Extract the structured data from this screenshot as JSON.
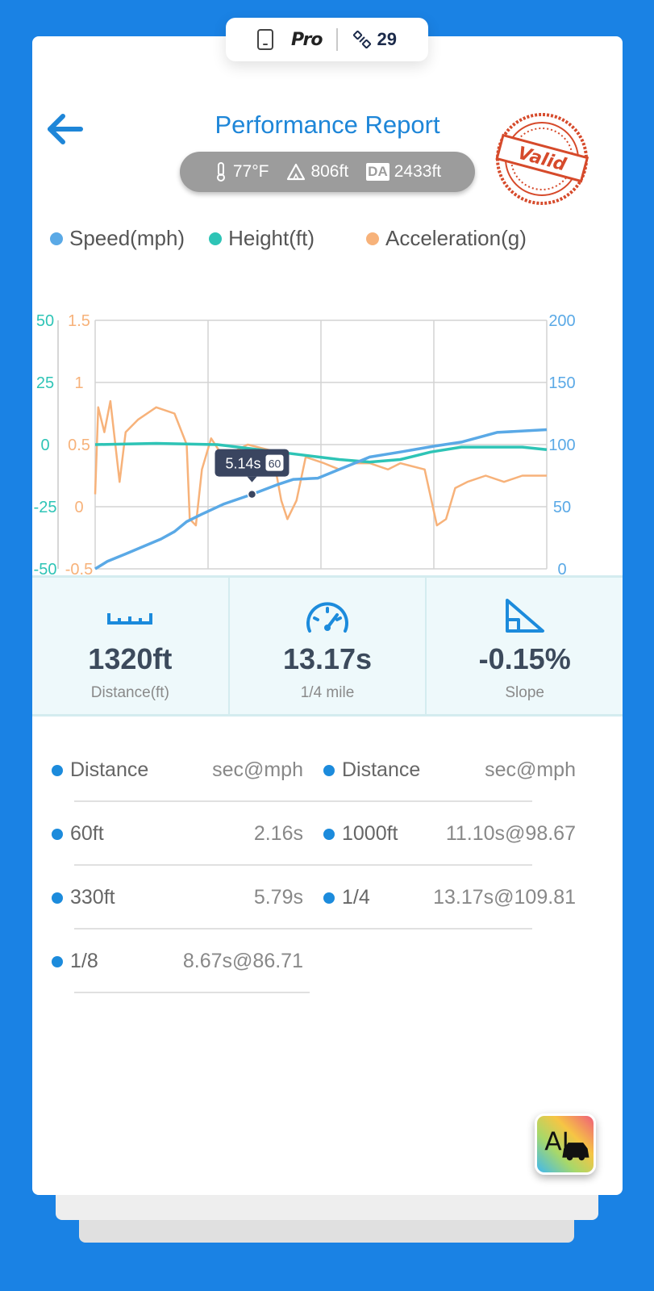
{
  "status_pill": {
    "brand": "Pro",
    "satellites": "29"
  },
  "header": {
    "title": "Performance Report",
    "stamp_text": "Valid"
  },
  "conditions": {
    "temperature": "77°F",
    "altitude": "806ft",
    "da_badge": "DA",
    "density_altitude": "2433ft"
  },
  "legend": [
    {
      "label": "Speed(mph)",
      "color": "#5aa9e6"
    },
    {
      "label": "Height(ft)",
      "color": "#2ec4b6"
    },
    {
      "label": "Acceleration(g)",
      "color": "#f7b27a"
    }
  ],
  "chart_data": {
    "type": "line",
    "x_range": [
      0,
      14.8
    ],
    "grid": true,
    "axes": {
      "height_left": {
        "ticks": [
          "50",
          "25",
          "0",
          "-25",
          "-50"
        ],
        "range": [
          -50,
          50
        ],
        "color": "#2ec4b6"
      },
      "accel_left": {
        "ticks": [
          "1.5",
          "1",
          "0.5",
          "0",
          "-0.5"
        ],
        "range": [
          -0.5,
          1.5
        ],
        "color": "#f7b27a"
      },
      "speed_right": {
        "ticks": [
          "200",
          "150",
          "100",
          "50",
          "0"
        ],
        "range": [
          0,
          200
        ],
        "color": "#5aa9e6"
      }
    },
    "series": [
      {
        "name": "Speed(mph)",
        "axis": "speed_right",
        "color": "#5aa9e6",
        "points": [
          [
            0,
            0
          ],
          [
            0.4,
            6
          ],
          [
            1,
            12
          ],
          [
            2.16,
            24
          ],
          [
            2.6,
            30
          ],
          [
            3,
            38
          ],
          [
            3.5,
            44
          ],
          [
            4.2,
            52
          ],
          [
            5.14,
            60
          ],
          [
            6,
            68
          ],
          [
            6.5,
            72
          ],
          [
            7.3,
            73
          ],
          [
            8,
            80
          ],
          [
            8.67,
            86.71
          ],
          [
            9,
            90
          ],
          [
            10,
            94
          ],
          [
            11.1,
            98.67
          ],
          [
            12,
            102
          ],
          [
            13.17,
            109.81
          ],
          [
            14.8,
            112
          ]
        ]
      },
      {
        "name": "Height(ft)",
        "axis": "height_left",
        "color": "#2ec4b6",
        "points": [
          [
            0,
            0
          ],
          [
            2,
            0.5
          ],
          [
            4,
            0
          ],
          [
            6,
            -3
          ],
          [
            8,
            -6
          ],
          [
            9,
            -7
          ],
          [
            10,
            -6
          ],
          [
            11,
            -3
          ],
          [
            12,
            -1
          ],
          [
            14,
            -1
          ],
          [
            14.8,
            -2
          ]
        ]
      },
      {
        "name": "Acceleration(g)",
        "axis": "accel_left",
        "color": "#f7b27a",
        "points": [
          [
            0,
            0.1
          ],
          [
            0.1,
            0.8
          ],
          [
            0.3,
            0.6
          ],
          [
            0.5,
            0.85
          ],
          [
            0.8,
            0.2
          ],
          [
            1,
            0.6
          ],
          [
            1.4,
            0.7
          ],
          [
            2,
            0.8
          ],
          [
            2.6,
            0.75
          ],
          [
            3,
            0.5
          ],
          [
            3.1,
            -0.1
          ],
          [
            3.3,
            -0.15
          ],
          [
            3.5,
            0.3
          ],
          [
            3.8,
            0.55
          ],
          [
            4.2,
            0.4
          ],
          [
            5,
            0.5
          ],
          [
            5.8,
            0.45
          ],
          [
            6.1,
            0.05
          ],
          [
            6.3,
            -0.1
          ],
          [
            6.6,
            0.05
          ],
          [
            6.9,
            0.4
          ],
          [
            7.5,
            0.35
          ],
          [
            8,
            0.3
          ],
          [
            8.5,
            0.35
          ],
          [
            9,
            0.35
          ],
          [
            9.6,
            0.3
          ],
          [
            10,
            0.35
          ],
          [
            10.8,
            0.3
          ],
          [
            11.2,
            -0.15
          ],
          [
            11.5,
            -0.1
          ],
          [
            11.8,
            0.15
          ],
          [
            12.2,
            0.2
          ],
          [
            12.8,
            0.25
          ],
          [
            13.4,
            0.2
          ],
          [
            14,
            0.25
          ],
          [
            14.8,
            0.25
          ]
        ]
      }
    ],
    "tooltip": {
      "time": "5.14s",
      "speed": "60",
      "x": 5.14,
      "y": 60
    }
  },
  "stats": [
    {
      "icon": "ruler-icon",
      "value": "1320ft",
      "label": "Distance(ft)"
    },
    {
      "icon": "speedometer-icon",
      "value": "13.17s",
      "label": "1/4 mile"
    },
    {
      "icon": "slope-icon",
      "value": "-0.15%",
      "label": "Slope"
    }
  ],
  "table": {
    "headers": {
      "col_distance": "Distance",
      "col_time": "sec@mph"
    },
    "rows": [
      {
        "left": {
          "distance": "60ft",
          "time": "2.16s"
        },
        "right": {
          "distance": "1000ft",
          "time": "11.10s@98.67"
        }
      },
      {
        "left": {
          "distance": "330ft",
          "time": "5.79s"
        },
        "right": {
          "distance": "1/4",
          "time": "13.17s@109.81"
        }
      },
      {
        "left": {
          "distance": "1/8",
          "time": "8.67s@86.71"
        }
      }
    ]
  },
  "ai_button": {
    "text": "AI"
  }
}
